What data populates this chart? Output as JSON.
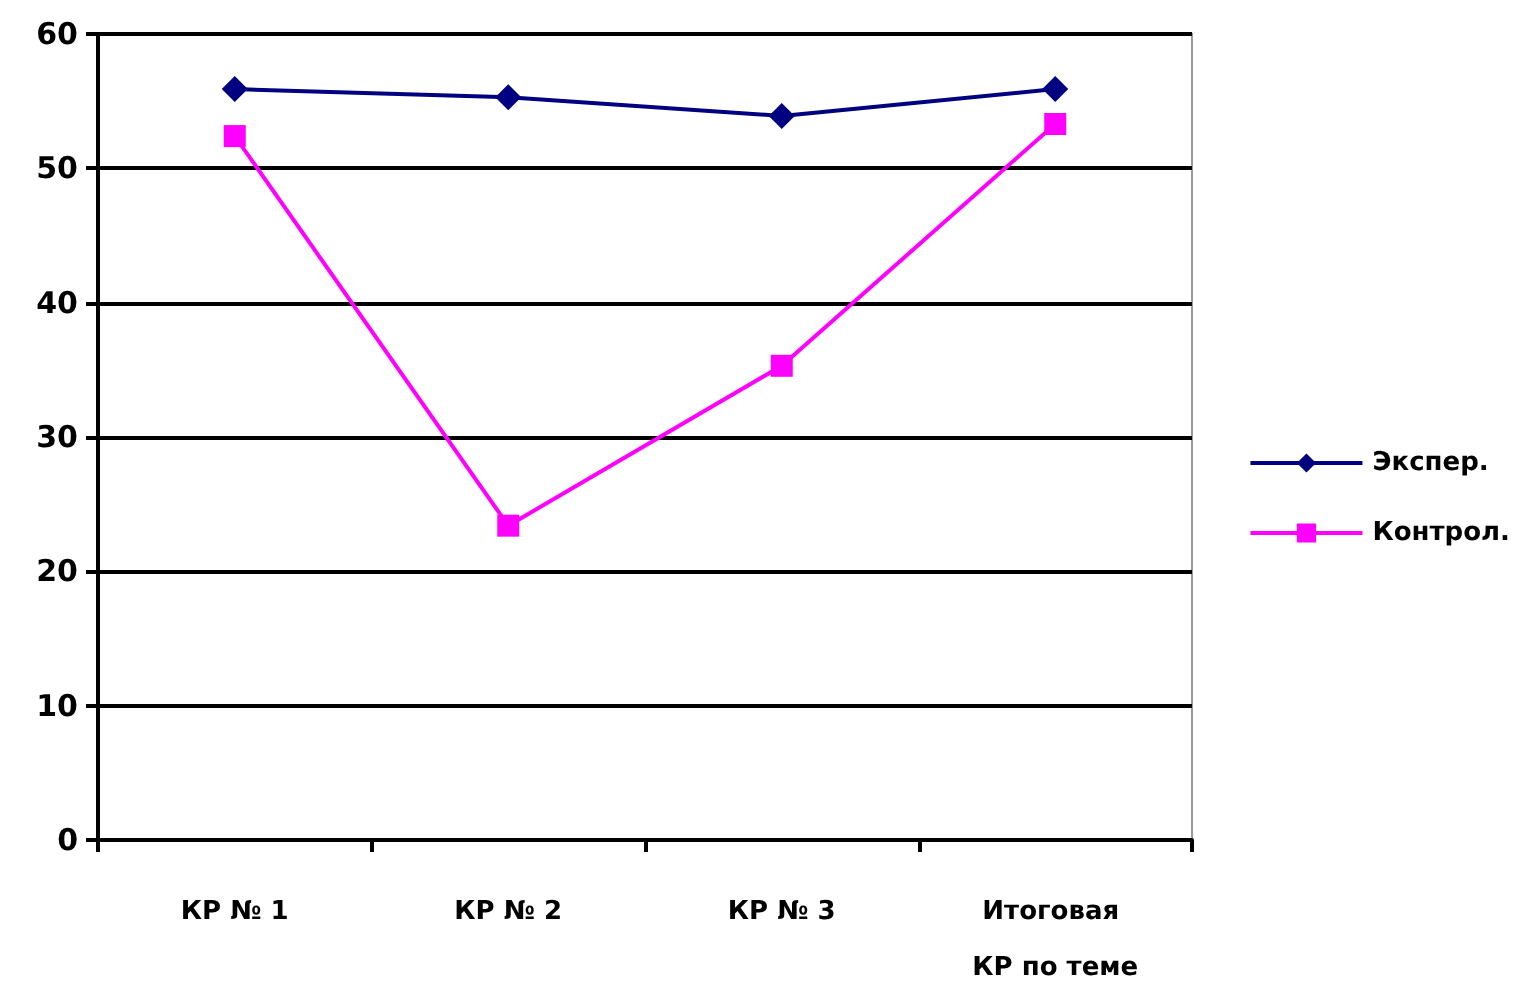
{
  "chart_data": {
    "type": "line",
    "categories": [
      "КР № 1",
      "КР № 2",
      "КР № 3",
      "Итоговая КР по теме"
    ],
    "series": [
      {
        "name": "Экспер.",
        "color": "#000080",
        "marker": "diamond",
        "values": [
          55.9,
          55.3,
          53.9,
          55.9
        ]
      },
      {
        "name": "Контрол.",
        "color": "#ff00ff",
        "marker": "square",
        "values": [
          52.4,
          23.4,
          35.3,
          53.3
        ]
      }
    ],
    "ylim": [
      0,
      60
    ],
    "yticks": [
      0,
      10,
      20,
      30,
      40,
      50,
      60
    ],
    "grid": "y",
    "legend": "right"
  }
}
